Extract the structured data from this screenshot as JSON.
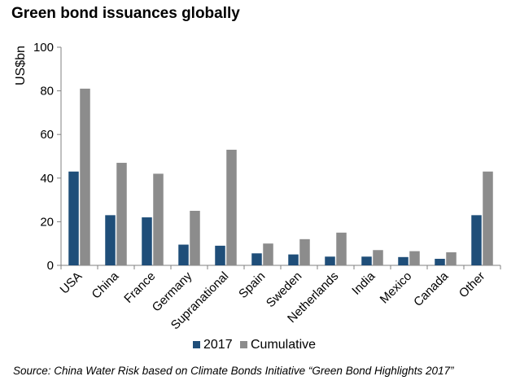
{
  "title": "Green bond issuances globally",
  "source": "Source: China Water Risk based on Climate Bonds Initiative “Green Bond Highlights 2017”",
  "chart_data": {
    "type": "bar",
    "ylabel": "US$bn",
    "ylim": [
      0,
      100
    ],
    "yticks": [
      0,
      20,
      40,
      60,
      80,
      100
    ],
    "grid": false,
    "legend": "bottom",
    "categories": [
      "USA",
      "China",
      "France",
      "Germany",
      "Supranational",
      "Spain",
      "Sweden",
      "Netherlands",
      "India",
      "Mexico",
      "Canada",
      "Other"
    ],
    "series": [
      {
        "name": "2017",
        "color": "#1f4e79",
        "values": [
          43,
          23,
          22,
          9.5,
          9,
          5.5,
          5,
          4,
          4,
          3.8,
          3,
          23
        ]
      },
      {
        "name": "Cumulative",
        "color": "#8c8c8c",
        "values": [
          81,
          47,
          42,
          25,
          53,
          10,
          12,
          15,
          7,
          6.5,
          6,
          43
        ]
      }
    ]
  }
}
